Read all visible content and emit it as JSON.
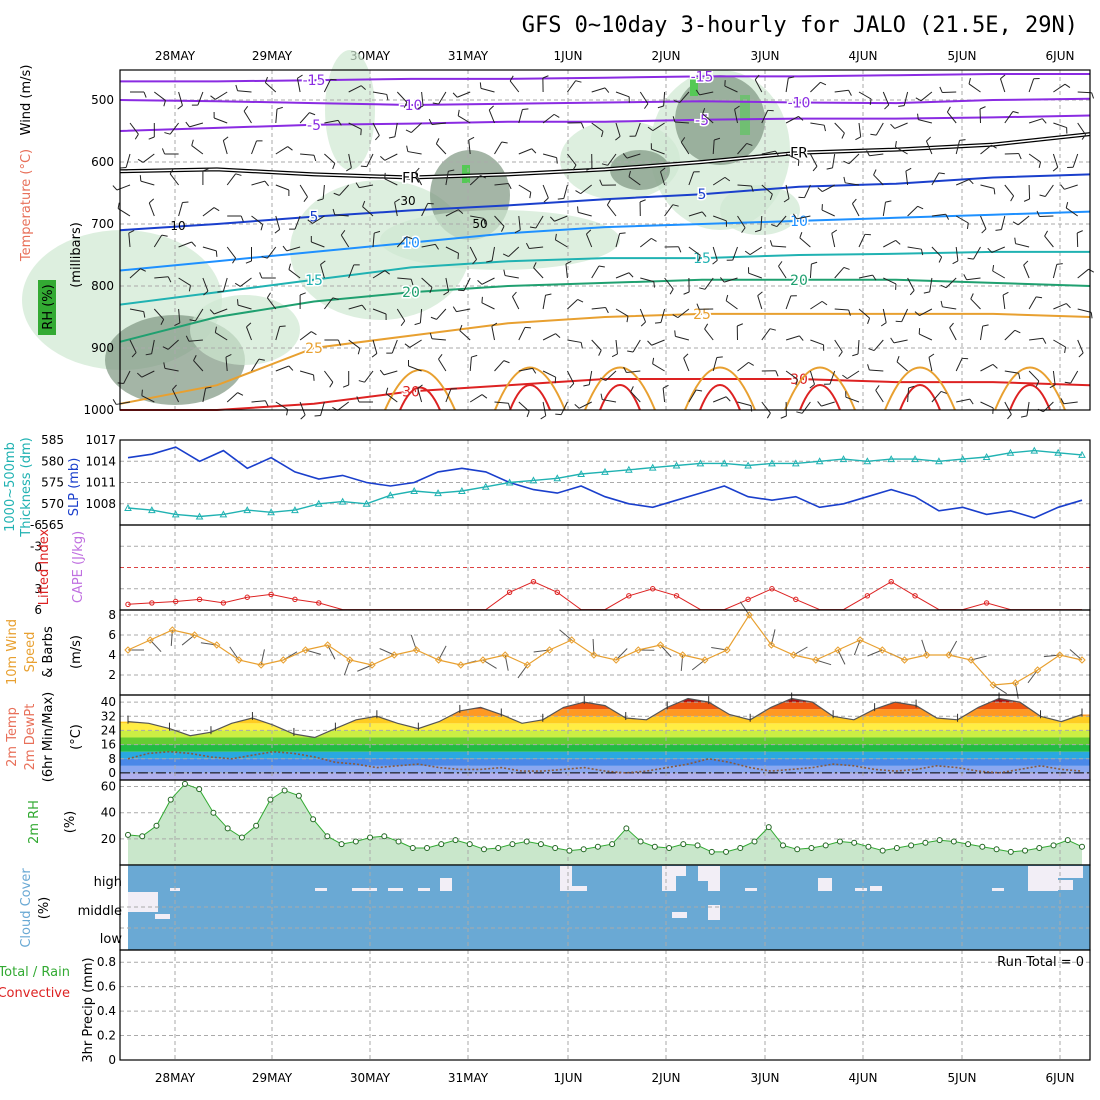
{
  "title": "GFS 0~10day 3-hourly for JALO (21.5E, 29N)",
  "dates": [
    "28MAY",
    "29MAY",
    "30MAY",
    "31MAY",
    "1JUN",
    "2JUN",
    "3JUN",
    "4JUN",
    "5JUN",
    "6JUN"
  ],
  "colors": {
    "grid": "#aaaaaa",
    "rh_fill": "#cfe8d2",
    "rh_dark": "#7d9680",
    "slp": "#1a3fcc",
    "thickness": "#20b2b2",
    "lifted_index": "#dd2222",
    "wind_speed": "#e8a030",
    "rh2m": "#33aa33",
    "cloud": "#6aa9d4",
    "temp_line": "#555555"
  },
  "chart_data": [
    {
      "type": "contour",
      "panel": "upper-air",
      "ylabel": "(millibars)",
      "variables": [
        "Wind (m/s)",
        "Temperature (°C)",
        "RH (%)"
      ],
      "yticks": [
        500,
        600,
        700,
        800,
        900,
        1000
      ],
      "temperature_labels": [
        "-15",
        "-10",
        "-5",
        "FR",
        "5",
        "10",
        "15",
        "20",
        "25",
        "30"
      ],
      "rh_labels": [
        "30",
        "50",
        "10"
      ],
      "temperature_contours": [
        {
          "label": "-15",
          "color": "#8a2be2",
          "pressure": [
            470,
            470,
            468,
            466,
            466,
            464,
            462,
            462,
            460,
            458,
            458
          ]
        },
        {
          "label": "-10",
          "color": "#8a2be2",
          "pressure": [
            500,
            502,
            505,
            508,
            506,
            504,
            502,
            504,
            505,
            500,
            498
          ]
        },
        {
          "label": "-5",
          "color": "#8a2be2",
          "pressure": [
            550,
            545,
            540,
            538,
            535,
            535,
            532,
            530,
            530,
            528,
            525
          ]
        },
        {
          "label": "FR",
          "color": "#000000",
          "pressure": [
            615,
            612,
            620,
            625,
            620,
            612,
            600,
            585,
            580,
            572,
            555
          ]
        },
        {
          "label": "5",
          "color": "#1a3fcc",
          "pressure": [
            710,
            700,
            688,
            678,
            670,
            660,
            652,
            640,
            635,
            625,
            620
          ]
        },
        {
          "label": "10",
          "color": "#1e90ff",
          "pressure": [
            775,
            760,
            745,
            730,
            715,
            705,
            700,
            695,
            690,
            685,
            680
          ]
        },
        {
          "label": "15",
          "color": "#20b2b2",
          "pressure": [
            830,
            810,
            790,
            770,
            760,
            755,
            755,
            750,
            748,
            745,
            745
          ]
        },
        {
          "label": "20",
          "color": "#20a070",
          "pressure": [
            890,
            850,
            825,
            810,
            800,
            795,
            790,
            790,
            790,
            795,
            800
          ]
        },
        {
          "label": "25",
          "color": "#e8a030",
          "pressure": [
            990,
            960,
            900,
            880,
            860,
            850,
            845,
            845,
            845,
            845,
            850
          ]
        },
        {
          "label": "30",
          "color": "#dd2222",
          "pressure": [
            1000,
            1000,
            990,
            970,
            960,
            950,
            950,
            950,
            955,
            955,
            960
          ]
        }
      ]
    },
    {
      "type": "line",
      "panel": "slp-thickness",
      "ylabel": "SLP (mb)",
      "ylabel2": "1000~500mb Thickness (dm)",
      "yticks_left": [
        "585",
        "580",
        "575",
        "570",
        "565"
      ],
      "yticks_right": [
        "1017",
        "1014",
        "1011",
        "1008"
      ],
      "ylim_slp": [
        1005,
        1017
      ],
      "ylim_thickness": [
        565,
        585
      ],
      "series": [
        {
          "name": "SLP (mb)",
          "values": [
            1014.5,
            1015.0,
            1016.0,
            1014.0,
            1015.5,
            1013.0,
            1014.5,
            1012.5,
            1011.5,
            1012.0,
            1011.0,
            1010.5,
            1011.0,
            1012.5,
            1013.0,
            1012.5,
            1011.0,
            1010.0,
            1009.5,
            1010.5,
            1009.0,
            1008.0,
            1007.5,
            1008.5,
            1009.5,
            1010.5,
            1009.0,
            1008.5,
            1009.0,
            1007.5,
            1008.0,
            1009.0,
            1010.0,
            1009.0,
            1007.0,
            1007.5,
            1006.5,
            1007.0,
            1006.0,
            1007.5,
            1008.5
          ]
        },
        {
          "name": "1000~500mb Thickness (dm)",
          "values": [
            569.0,
            568.5,
            567.5,
            567.0,
            567.5,
            568.5,
            568.0,
            568.5,
            570.0,
            570.5,
            570.0,
            572.0,
            573.0,
            572.5,
            573.0,
            574.0,
            575.0,
            575.5,
            576.0,
            577.0,
            577.5,
            578.0,
            578.5,
            579.0,
            579.5,
            579.5,
            579.0,
            579.5,
            579.5,
            580.0,
            580.5,
            580.0,
            580.5,
            580.5,
            580.0,
            580.5,
            581.0,
            582.0,
            582.5,
            582.0,
            581.5
          ]
        }
      ]
    },
    {
      "type": "line",
      "panel": "stability",
      "ylabel": "Lifted Index",
      "ylabel2": "CAPE (J/kg)",
      "yticks": [
        "-6",
        "-3",
        "0",
        "3",
        "6"
      ],
      "ylim": [
        -6,
        6
      ],
      "series": [
        {
          "name": "Lifted Index",
          "values": [
            5.2,
            5.0,
            4.8,
            4.5,
            5.0,
            4.2,
            3.8,
            4.5,
            5.0,
            6.0,
            6.0,
            6.0,
            6.0,
            6.0,
            6.0,
            6.0,
            3.5,
            2.0,
            3.5,
            6.0,
            6.0,
            4.0,
            3.0,
            4.0,
            6.0,
            6.0,
            4.5,
            3.0,
            4.5,
            6.0,
            6.0,
            4.0,
            2.0,
            4.0,
            6.0,
            6.0,
            5.0,
            6.0,
            6.0,
            6.0,
            6.0
          ]
        }
      ]
    },
    {
      "type": "line",
      "panel": "10m-wind",
      "ylabel": "10m Wind Speed & Barbs",
      "yunit": "(m/s)",
      "yticks": [
        "8",
        "6",
        "4",
        "2"
      ],
      "ylim": [
        0,
        8.5
      ],
      "series": [
        {
          "name": "10m Wind Speed",
          "values": [
            4.5,
            5.5,
            6.5,
            6.0,
            5.0,
            3.5,
            3.0,
            3.5,
            4.5,
            5.0,
            3.5,
            3.0,
            4.0,
            4.5,
            3.5,
            3.0,
            3.5,
            4.0,
            3.0,
            4.5,
            5.5,
            4.0,
            3.5,
            4.5,
            5.0,
            4.0,
            3.5,
            4.5,
            8.0,
            5.0,
            4.0,
            3.5,
            4.5,
            5.5,
            4.5,
            3.5,
            4.0,
            4.0,
            3.5,
            1.0,
            1.2,
            2.5,
            4.0,
            3.5
          ]
        }
      ]
    },
    {
      "type": "area",
      "panel": "2m-temp",
      "ylabel": "2m Temp",
      "ylabel2": "2m DewPt",
      "ylabel3": "(6hr Min/Max)",
      "yunit": "(°C)",
      "yticks": [
        "40",
        "32",
        "24",
        "16",
        "8",
        "0"
      ],
      "ylim": [
        -4,
        44
      ],
      "series": [
        {
          "name": "2m Temp",
          "values": [
            29,
            28,
            25,
            21,
            23,
            28,
            31,
            27,
            22,
            20,
            25,
            30,
            32,
            28,
            25,
            29,
            35,
            37,
            33,
            28,
            30,
            37,
            40,
            38,
            31,
            30,
            37,
            42,
            40,
            33,
            30,
            37,
            42,
            40,
            32,
            30,
            36,
            40,
            38,
            31,
            30,
            37,
            42,
            40,
            32,
            29,
            33
          ]
        },
        {
          "name": "2m DewPt",
          "values": [
            8,
            11,
            12,
            11,
            9,
            8,
            10,
            12,
            11,
            9,
            6,
            5,
            3,
            4,
            5,
            3,
            2,
            2,
            3,
            1,
            1,
            2,
            3,
            1,
            0,
            1,
            3,
            5,
            8,
            6,
            3,
            1,
            2,
            3,
            5,
            4,
            2,
            1,
            2,
            4,
            3,
            1,
            0,
            2,
            4,
            2,
            1
          ]
        }
      ]
    },
    {
      "type": "area",
      "panel": "2m-rh",
      "ylabel": "2m RH",
      "yunit": "(%)",
      "yticks": [
        "60",
        "40",
        "20"
      ],
      "ylim": [
        0,
        65
      ],
      "series": [
        {
          "name": "2m RH",
          "values": [
            23,
            22,
            30,
            50,
            62,
            58,
            40,
            28,
            21,
            30,
            50,
            57,
            53,
            35,
            22,
            16,
            18,
            21,
            22,
            18,
            13,
            13,
            16,
            19,
            16,
            12,
            13,
            16,
            18,
            16,
            13,
            11,
            12,
            14,
            16,
            28,
            18,
            14,
            13,
            16,
            15,
            10,
            10,
            13,
            18,
            29,
            15,
            12,
            13,
            15,
            18,
            17,
            14,
            11,
            13,
            15,
            17,
            19,
            18,
            16,
            14,
            12,
            10,
            11,
            13,
            15,
            19,
            14
          ]
        }
      ]
    },
    {
      "type": "heatmap",
      "panel": "cloud-cover",
      "ylabel": "Cloud Cover",
      "yunit": "(%)",
      "levels": [
        "high",
        "middle",
        "low"
      ]
    },
    {
      "type": "bar",
      "panel": "precip",
      "ylabel": "3hr Precip (mm)",
      "legend": [
        "Total / Rain",
        "Convective"
      ],
      "annotation": "Run Total = 0",
      "yticks": [
        "0.8",
        "0.6",
        "0.4",
        "0.2",
        "0"
      ],
      "ylim": [
        0,
        0.9
      ]
    }
  ],
  "labels": {
    "wind": "Wind (m/s)",
    "temperature": "Temperature (°C)",
    "rh": "RH (%)",
    "millibars": "(millibars)",
    "slp": "SLP (mb)",
    "thickness_1": "1000~500mb",
    "thickness_2": "Thickness (dm)",
    "lifted_index": "Lifted Index",
    "cape": "CAPE (J/kg)",
    "wind10_1": "10m Wind",
    "wind10_2": "Speed",
    "wind10_3": "& Barbs",
    "wind10_unit": "(m/s)",
    "t2m_1": "2m Temp",
    "t2m_2": "2m DewPt",
    "t2m_3": "(6hr Min/Max)",
    "t2m_unit": "(°C)",
    "rh2m": "2m RH",
    "rh2m_unit": "(%)",
    "cloud_1": "Cloud Cover",
    "cloud_unit": "(%)",
    "cloud_high": "high",
    "cloud_middle": "middle",
    "cloud_low": "low",
    "precip_1": "Total / Rain",
    "precip_2": "Convective",
    "precip_y": "3hr Precip (mm)",
    "run_total": "Run Total = 0"
  }
}
